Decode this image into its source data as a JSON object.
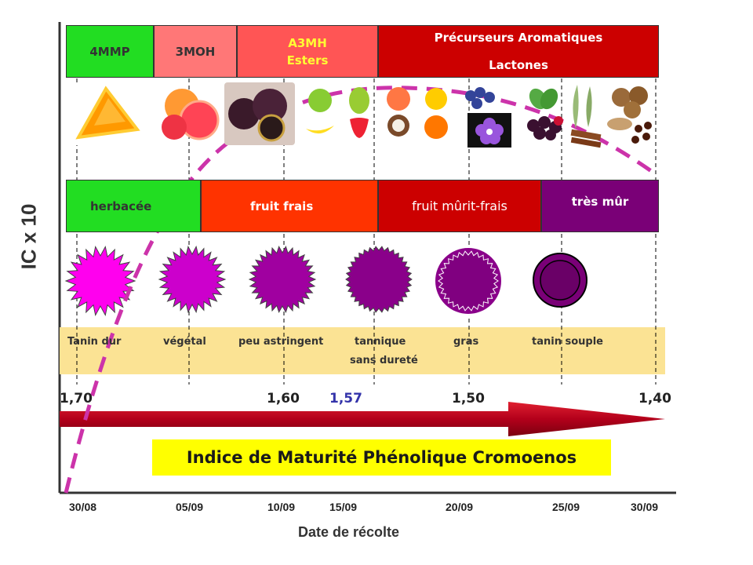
{
  "y_axis_label": "IC x 10",
  "x_axis_label": "Date de récolte",
  "aroma_bar": {
    "items": [
      {
        "label": "4MMP",
        "color": "#22dd22",
        "text_color": "#333333"
      },
      {
        "label": "3MOH",
        "color": "#ff7777",
        "text_color": "#333333"
      },
      {
        "label_line1": "A3MH",
        "label_line2": "Esters",
        "color": "#ff5555",
        "text_color": "#ffff33"
      },
      {
        "label_line1": "Précurseurs Aromatiques",
        "label_line2": "Lactones",
        "color": "#cc0000",
        "text_color": "#ffffff"
      }
    ]
  },
  "stage_bar": {
    "items": [
      {
        "label": "herbacée",
        "color": "#22dd22",
        "text_color": "#333333"
      },
      {
        "label": "fruit frais",
        "color": "#ff3300",
        "text_color": "#ffffff"
      },
      {
        "label": "fruit mûrit-frais",
        "color": "#cc0000",
        "text_color": "#ffffff"
      },
      {
        "label": "très mûr",
        "color": "#7a0077",
        "text_color": "#ffffff"
      }
    ]
  },
  "fruit_icons": [
    "orange-slice-icon",
    "grapefruit-icon",
    "passion-fruit-icon",
    "apple-banana-icon",
    "pear-strawberry-icon",
    "peach-coconut-icon",
    "lemon-orange-icon",
    "blueberry-violet-icon",
    "mint-blackberry-icon",
    "eucalyptus-cinnamon-icon",
    "nutmeg-cloves-icon"
  ],
  "tannin_legend": {
    "items": [
      "Tanin dur",
      "végétal",
      "peu astringent",
      "tannique",
      "gras",
      "tanin souple"
    ],
    "extra": "sans dureté",
    "background": "#fbe394"
  },
  "imp_values": [
    "1,70",
    "1,60",
    "1,57",
    "1,50",
    "1,40"
  ],
  "imp_highlight_color": "#3333aa",
  "banner": {
    "text": "Indice de Maturité Phénolique Cromoenos",
    "background": "#ffff00"
  },
  "dates": [
    "30/08",
    "05/09",
    "10/09",
    "15/09",
    "20/09",
    "25/09",
    "30/09"
  ],
  "colors": {
    "arrow": "#b3001b",
    "curve": "#cc33aa",
    "dashed": "#000000"
  }
}
